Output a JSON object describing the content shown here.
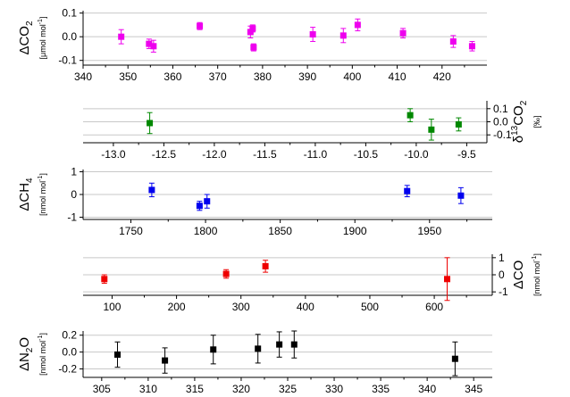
{
  "chart_data": [
    {
      "type": "scatter",
      "quantity": "ΔCO",
      "quantity_sub": "2",
      "unit_main": "[μmol mol",
      "unit_sup": "-1",
      "unit_tail": "]",
      "label_side": "left",
      "xaxis_side": "bottom",
      "color": "#ee00ee",
      "xlim": [
        340,
        430
      ],
      "ylim": [
        -0.12,
        0.11
      ],
      "xticks": [
        340,
        350,
        360,
        370,
        380,
        390,
        400,
        410,
        420
      ],
      "xtick_labels": [
        "340",
        "350",
        "360",
        "370",
        "380",
        "390",
        "400",
        "410",
        "420"
      ],
      "yticks": [
        -0.1,
        0.0,
        0.1
      ],
      "ytick_labels": [
        "-0.1",
        "0.0",
        "0.1"
      ],
      "grid": true,
      "points": [
        {
          "x": 348.5,
          "y": 0.0,
          "err": 0.03
        },
        {
          "x": 354.7,
          "y": -0.03,
          "err": 0.02
        },
        {
          "x": 355.7,
          "y": -0.04,
          "err": 0.025
        },
        {
          "x": 366.0,
          "y": 0.045,
          "err": 0.015
        },
        {
          "x": 377.3,
          "y": 0.02,
          "err": 0.025
        },
        {
          "x": 377.8,
          "y": 0.035,
          "err": 0.015
        },
        {
          "x": 378.0,
          "y": -0.045,
          "err": 0.015
        },
        {
          "x": 391.2,
          "y": 0.01,
          "err": 0.03
        },
        {
          "x": 398.0,
          "y": 0.005,
          "err": 0.03
        },
        {
          "x": 401.2,
          "y": 0.05,
          "err": 0.025
        },
        {
          "x": 411.3,
          "y": 0.015,
          "err": 0.02
        },
        {
          "x": 422.5,
          "y": -0.02,
          "err": 0.025
        },
        {
          "x": 426.7,
          "y": -0.04,
          "err": 0.02
        }
      ]
    },
    {
      "type": "scatter",
      "quantity": "δ",
      "quantity_sup": "13",
      "quantity_tail": "CO",
      "quantity_sub": "2",
      "unit_main": "[‰]",
      "label_side": "right",
      "xaxis_side": "bottom",
      "color": "#008800",
      "xlim": [
        -13.3,
        -9.3
      ],
      "ylim": [
        -0.16,
        0.16
      ],
      "xticks": [
        -13.0,
        -12.5,
        -12.0,
        -11.5,
        -11.0,
        -10.5,
        -10.0,
        -9.5
      ],
      "xtick_labels": [
        "-13.0",
        "-12.5",
        "-12.0",
        "-11.5",
        "-11.0",
        "-10.5",
        "-10.0",
        "-9.5"
      ],
      "yticks": [
        -0.1,
        0.0,
        0.1
      ],
      "ytick_labels": [
        "-0.1",
        "0.0",
        "0.1"
      ],
      "grid": true,
      "points": [
        {
          "x": -12.64,
          "y": -0.01,
          "err": 0.08
        },
        {
          "x": -10.06,
          "y": 0.05,
          "err": 0.05
        },
        {
          "x": -9.85,
          "y": -0.06,
          "err": 0.08
        },
        {
          "x": -9.58,
          "y": -0.02,
          "err": 0.05
        }
      ]
    },
    {
      "type": "scatter",
      "quantity": "ΔCH",
      "quantity_sub": "4",
      "unit_main": "[nmol mol",
      "unit_sup": "-1",
      "unit_tail": "]",
      "label_side": "left",
      "xaxis_side": "bottom",
      "color": "#0000ee",
      "xlim": [
        1718,
        1992
      ],
      "ylim": [
        -1.1,
        1.1
      ],
      "xticks": [
        1750,
        1800,
        1850,
        1900,
        1950
      ],
      "xtick_labels": [
        "1750",
        "1800",
        "1850",
        "1900",
        "1950"
      ],
      "yticks": [
        -1,
        0,
        1
      ],
      "ytick_labels": [
        "-1",
        "0",
        "1"
      ],
      "grid": true,
      "points": [
        {
          "x": 1764,
          "y": 0.2,
          "err": 0.3
        },
        {
          "x": 1796,
          "y": -0.5,
          "err": 0.2
        },
        {
          "x": 1801,
          "y": -0.3,
          "err": 0.3
        },
        {
          "x": 1935,
          "y": 0.15,
          "err": 0.25
        },
        {
          "x": 1971,
          "y": -0.05,
          "err": 0.35
        }
      ]
    },
    {
      "type": "scatter",
      "quantity": "ΔCO",
      "unit_main": "[nmol mol",
      "unit_sup": "-1",
      "unit_tail": "]",
      "label_side": "right",
      "xaxis_side": "bottom",
      "color": "#ee0000",
      "xlim": [
        55,
        690
      ],
      "ylim": [
        -1.2,
        1.2
      ],
      "xticks": [
        100,
        200,
        300,
        400,
        500,
        600
      ],
      "xtick_labels": [
        "100",
        "200",
        "300",
        "400",
        "500",
        "600"
      ],
      "yticks": [
        -1,
        0,
        1
      ],
      "ytick_labels": [
        "-1",
        "0",
        "1"
      ],
      "grid": true,
      "points": [
        {
          "x": 88,
          "y": -0.25,
          "err": 0.25
        },
        {
          "x": 277,
          "y": 0.05,
          "err": 0.25
        },
        {
          "x": 338,
          "y": 0.5,
          "err": 0.35
        },
        {
          "x": 620,
          "y": -0.25,
          "err": 1.25
        }
      ]
    },
    {
      "type": "scatter",
      "quantity": "ΔN",
      "quantity_sub": "2",
      "quantity_tail": "O",
      "unit_main": "[nmol mol",
      "unit_sup": "-1",
      "unit_tail": "]",
      "label_side": "left",
      "xaxis_side": "bottom",
      "color": "#000000",
      "xlim": [
        303,
        347
      ],
      "ylim": [
        -0.3,
        0.25
      ],
      "xticks": [
        305,
        310,
        315,
        320,
        325,
        330,
        335,
        340,
        345
      ],
      "xtick_labels": [
        "305",
        "310",
        "315",
        "320",
        "325",
        "330",
        "335",
        "340",
        "345"
      ],
      "yticks": [
        -0.2,
        0.0,
        0.2
      ],
      "ytick_labels": [
        "-0.2",
        "0.0",
        "0.2"
      ],
      "grid": true,
      "points": [
        {
          "x": 306.7,
          "y": -0.03,
          "err": 0.15
        },
        {
          "x": 311.8,
          "y": -0.1,
          "err": 0.15
        },
        {
          "x": 317.0,
          "y": 0.03,
          "err": 0.17
        },
        {
          "x": 321.8,
          "y": 0.04,
          "err": 0.17
        },
        {
          "x": 324.1,
          "y": 0.09,
          "err": 0.15
        },
        {
          "x": 325.7,
          "y": 0.09,
          "err": 0.16
        },
        {
          "x": 343.0,
          "y": -0.08,
          "err": 0.2
        }
      ]
    }
  ]
}
